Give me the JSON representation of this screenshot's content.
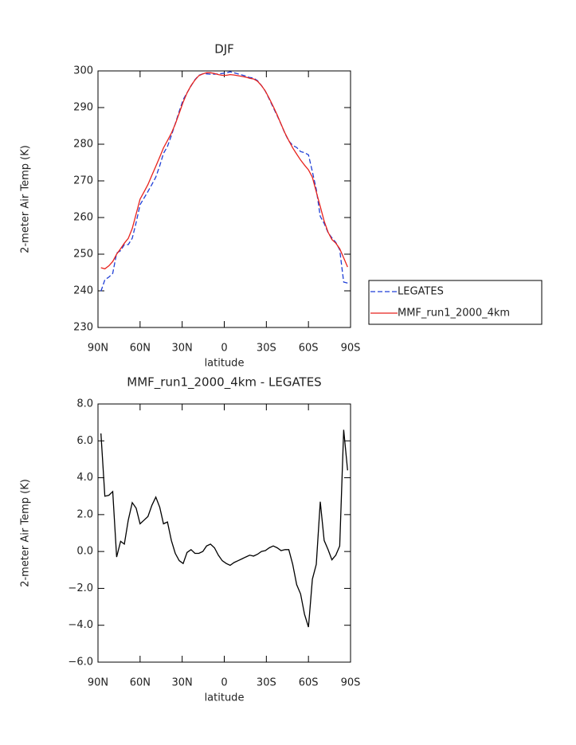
{
  "chart_data": [
    {
      "type": "line",
      "title": "DJF",
      "xlabel": "latitude",
      "ylabel": "2-meter Air Temp (K)",
      "x": [
        87.9,
        85.1,
        82.3,
        79.5,
        76.7,
        73.9,
        71.2,
        68.4,
        65.6,
        62.8,
        60.0,
        57.2,
        54.4,
        51.6,
        48.8,
        46.0,
        43.3,
        40.5,
        37.7,
        34.9,
        32.1,
        29.3,
        26.5,
        23.7,
        20.9,
        18.1,
        15.3,
        12.6,
        9.8,
        7.0,
        4.2,
        1.4,
        -1.4,
        -4.2,
        -7.0,
        -9.8,
        -12.6,
        -15.3,
        -18.1,
        -20.9,
        -23.7,
        -26.5,
        -29.3,
        -32.1,
        -34.9,
        -37.7,
        -40.5,
        -43.3,
        -46.0,
        -48.8,
        -51.6,
        -54.4,
        -57.2,
        -60.0,
        -62.8,
        -65.6,
        -68.4,
        -71.2,
        -74.0,
        -76.7,
        -79.5,
        -82.3,
        -85.1,
        -87.9
      ],
      "series": [
        {
          "name": "LEGATES",
          "color": "#1f3fd6",
          "dash": true,
          "values": [
            239.9,
            243.0,
            243.75,
            244.75,
            250.3,
            250.95,
            252.6,
            252.6,
            254.35,
            258.65,
            263.5,
            265.3,
            267.1,
            269.0,
            271.05,
            274.1,
            277.5,
            279.4,
            282.4,
            285.6,
            289.0,
            292.15,
            294.05,
            295.9,
            297.6,
            298.8,
            299.2,
            299.2,
            299.1,
            299.1,
            299.2,
            299.3,
            299.45,
            299.75,
            299.5,
            299.2,
            298.9,
            298.6,
            298.2,
            298.05,
            297.35,
            296.0,
            294.45,
            292.3,
            290.0,
            287.8,
            285.45,
            282.9,
            280.9,
            279.7,
            279.1,
            278.0,
            277.7,
            277.1,
            272.5,
            267.7,
            260.3,
            258.4,
            255.9,
            254.45,
            253.2,
            251.2,
            242.4,
            242.1
          ]
        },
        {
          "name": "MMF_run1_2000_4km",
          "color": "#e8221c",
          "dash": false,
          "values": [
            246.3,
            246,
            246.8,
            248,
            250,
            251.5,
            253,
            254.3,
            257,
            261,
            265,
            267,
            269,
            271.5,
            274,
            276.5,
            279,
            281,
            283,
            285.5,
            288.5,
            291.5,
            294,
            296,
            297.5,
            298.7,
            299.2,
            299.5,
            299.5,
            299.3,
            299.0,
            298.8,
            298.8,
            299.0,
            298.9,
            298.7,
            298.5,
            298.3,
            298.0,
            297.8,
            297.2,
            296.0,
            294.5,
            292.5,
            290.3,
            288,
            285.5,
            283,
            281,
            279,
            277.3,
            275.7,
            274.3,
            273,
            271,
            267,
            263,
            259,
            256,
            254,
            253,
            251.5,
            249,
            246.5
          ]
        }
      ],
      "xlim": [
        90,
        -90
      ],
      "xticks": [
        {
          "value": 90,
          "label": "90N"
        },
        {
          "value": 60,
          "label": "60N"
        },
        {
          "value": 30,
          "label": "30N"
        },
        0,
        {
          "value": -30,
          "label": "30S"
        },
        {
          "value": -60,
          "label": "60S"
        },
        {
          "value": -90,
          "label": "90S"
        }
      ],
      "ylim": [
        230,
        300
      ],
      "yticks": [
        230,
        240,
        250,
        260,
        270,
        280,
        290,
        300
      ],
      "legend": "right"
    },
    {
      "type": "line",
      "title": "MMF_run1_2000_4km - LEGATES",
      "xlabel": "latitude",
      "ylabel": "2-meter Air Temp (K)",
      "x": [
        87.9,
        85.1,
        82.3,
        79.5,
        76.7,
        73.9,
        71.2,
        68.4,
        65.6,
        62.8,
        60.0,
        57.2,
        54.4,
        51.6,
        48.8,
        46.0,
        43.3,
        40.5,
        37.7,
        34.9,
        32.1,
        29.3,
        26.5,
        23.7,
        20.9,
        18.1,
        15.3,
        12.6,
        9.8,
        7.0,
        4.2,
        1.4,
        -1.4,
        -4.2,
        -7.0,
        -9.8,
        -12.6,
        -15.3,
        -18.1,
        -20.9,
        -23.7,
        -26.5,
        -29.3,
        -32.1,
        -34.9,
        -37.7,
        -40.5,
        -43.3,
        -46.0,
        -48.8,
        -51.6,
        -54.4,
        -57.2,
        -60.0,
        -62.8,
        -65.6,
        -68.4,
        -71.2,
        -74.0,
        -76.7,
        -79.5,
        -82.3,
        -85.1,
        -87.9
      ],
      "series": [
        {
          "color": "#000000",
          "dash": false,
          "values": [
            6.4,
            3.0,
            3.05,
            3.25,
            -0.3,
            0.55,
            0.4,
            1.7,
            2.65,
            2.35,
            1.5,
            1.7,
            1.9,
            2.5,
            2.95,
            2.4,
            1.5,
            1.6,
            0.6,
            -0.1,
            -0.5,
            -0.65,
            -0.05,
            0.1,
            -0.1,
            -0.1,
            0.0,
            0.3,
            0.4,
            0.2,
            -0.2,
            -0.5,
            -0.65,
            -0.75,
            -0.6,
            -0.5,
            -0.4,
            -0.3,
            -0.2,
            -0.25,
            -0.15,
            0.0,
            0.05,
            0.2,
            0.3,
            0.2,
            0.05,
            0.1,
            0.1,
            -0.7,
            -1.8,
            -2.3,
            -3.4,
            -4.1,
            -1.5,
            -0.7,
            2.7,
            0.6,
            0.1,
            -0.45,
            -0.2,
            0.3,
            6.6,
            4.4
          ]
        }
      ],
      "xlim": [
        90,
        -90
      ],
      "xticks": [
        {
          "value": 90,
          "label": "90N"
        },
        {
          "value": 60,
          "label": "60N"
        },
        {
          "value": 30,
          "label": "30N"
        },
        0,
        {
          "value": -30,
          "label": "30S"
        },
        {
          "value": -60,
          "label": "60S"
        },
        {
          "value": -90,
          "label": "90S"
        }
      ],
      "ylim": [
        -6,
        8
      ],
      "yticks": [
        {
          "value": -6,
          "label": "−6.0"
        },
        {
          "value": -4,
          "label": "−4.0"
        },
        {
          "value": -2,
          "label": "−2.0"
        },
        {
          "value": 0,
          "label": "0.0"
        },
        {
          "value": 2,
          "label": "2.0"
        },
        {
          "value": 4,
          "label": "4.0"
        },
        {
          "value": 6,
          "label": "6.0"
        },
        {
          "value": 8,
          "label": "8.0"
        }
      ]
    }
  ]
}
